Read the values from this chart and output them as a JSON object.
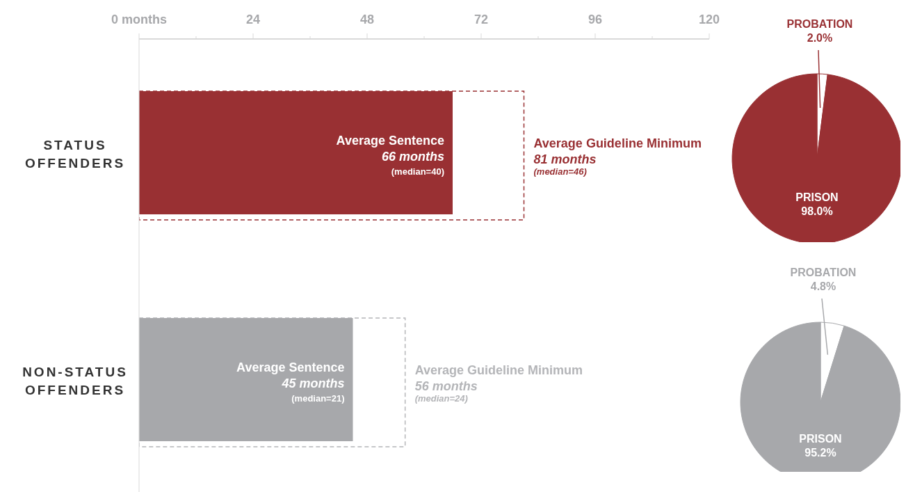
{
  "chart_data": [
    {
      "type": "bar",
      "orientation": "horizontal",
      "categories": [
        "STATUS OFFENDERS",
        "NON-STATUS OFFENDERS"
      ],
      "series": [
        {
          "name": "Average Sentence",
          "colors": [
            "#993033",
            "#a7a8ab"
          ],
          "values": [
            66,
            45
          ],
          "value_labels": [
            "66 months",
            "45 months"
          ]
        },
        {
          "name": "Average Guideline Minimum",
          "colors": [
            "#993033",
            "#b4b5b8"
          ],
          "line_style": "dashed",
          "values": [
            81,
            56
          ],
          "value_labels": [
            "81 months",
            "56 months"
          ]
        }
      ],
      "xlim": [
        0,
        120
      ],
      "xticks": [
        {
          "value": 0,
          "label": "0  months"
        },
        {
          "value": 12,
          "label": null
        },
        24,
        {
          "value": 36,
          "label": null
        },
        48,
        {
          "value": 60,
          "label": null
        },
        72,
        {
          "value": 84,
          "label": null
        },
        96,
        {
          "value": 108,
          "label": null
        },
        120
      ],
      "annotations": [
        {
          "text": "(median=40)",
          "x": 66,
          "y": "STATUS OFFENDERS"
        },
        {
          "text": "(median=46)",
          "x": 81,
          "y": "STATUS OFFENDERS"
        },
        {
          "text": "(median=21)",
          "x": 45,
          "y": "NON-STATUS OFFENDERS"
        },
        {
          "text": "(median=24)",
          "x": 56,
          "y": "NON-STATUS OFFENDERS"
        }
      ]
    },
    {
      "type": "pie",
      "categories": [
        "PROBATION",
        "PRISON"
      ],
      "values": [
        2.0,
        98.0
      ],
      "colors": [
        "#ffffff",
        "#993033"
      ],
      "value_labels": [
        "2.0%",
        "98.0%"
      ]
    },
    {
      "type": "pie",
      "categories": [
        "PROBATION",
        "PRISON"
      ],
      "values": [
        4.8,
        95.2
      ],
      "colors": [
        "#ffffff",
        "#a7a8ab"
      ],
      "value_labels": [
        "4.8%",
        "95.2%"
      ]
    }
  ]
}
